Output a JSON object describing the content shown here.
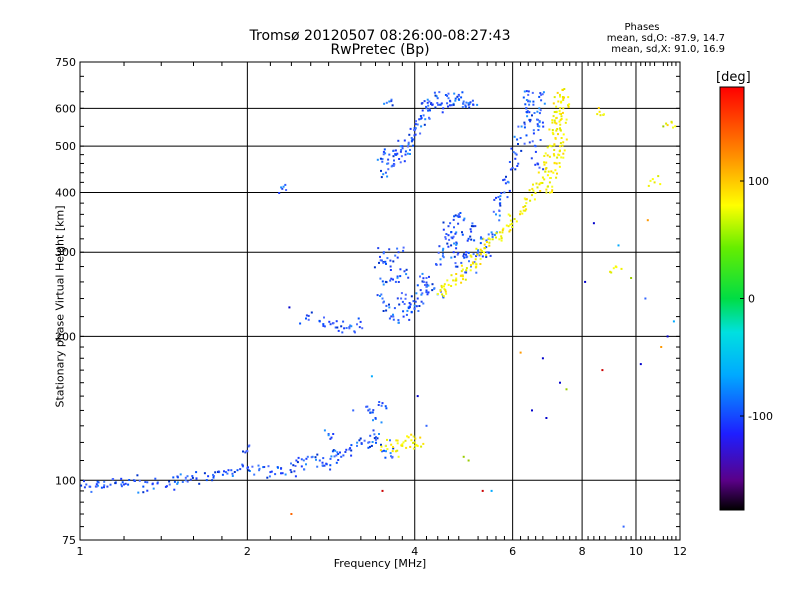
{
  "chart_data": {
    "type": "scatter",
    "title": "Tromsø 20120507 08:26:00-08:27:43",
    "subtitle": "RwPretec (Bp)",
    "xlabel": "Frequency [MHz]",
    "ylabel": "Stationary phase Virtual Height [km]",
    "x_scale": "log",
    "y_scale": "log",
    "xlim": [
      1,
      12
    ],
    "ylim": [
      75,
      750
    ],
    "x_ticks": [
      1,
      2,
      4,
      6,
      8,
      10,
      12
    ],
    "x_tick_labels": [
      "1",
      "2",
      "4",
      "6",
      "8",
      "10",
      "12"
    ],
    "y_ticks": [
      75,
      100,
      200,
      300,
      400,
      500,
      600,
      750
    ],
    "y_tick_labels": [
      "75",
      "100",
      "200",
      "300",
      "400",
      "500",
      "600",
      "750"
    ],
    "grid": true,
    "phases": {
      "heading": "Phases",
      "line_o": "mean, sd,O: -87.9, 14.7",
      "line_x": "mean, sd,X:  91.0, 16.9"
    },
    "colorbar": {
      "label": "[deg]",
      "range": [
        -180,
        180
      ],
      "tick_values": [
        100,
        0,
        -100
      ],
      "tick_labels": [
        "100",
        "0",
        "-100"
      ]
    },
    "series": [
      {
        "phase": "O",
        "points": [
          [
            1.0,
            98
          ],
          [
            1.04,
            97
          ],
          [
            1.08,
            99
          ],
          [
            1.12,
            97
          ],
          [
            1.16,
            99
          ],
          [
            1.2,
            98
          ],
          [
            1.25,
            100
          ],
          [
            1.3,
            97
          ],
          [
            1.38,
            99
          ],
          [
            1.45,
            98
          ],
          [
            1.5,
            99
          ],
          [
            1.55,
            100
          ],
          [
            1.62,
            101
          ],
          [
            1.7,
            102
          ],
          [
            1.78,
            104
          ],
          [
            1.85,
            105
          ],
          [
            1.92,
            105
          ],
          [
            2.0,
            106
          ],
          [
            2.1,
            105
          ],
          [
            2.2,
            104
          ],
          [
            2.3,
            106
          ],
          [
            2.4,
            104
          ],
          [
            2.45,
            110
          ],
          [
            2.55,
            108
          ],
          [
            2.62,
            112
          ],
          [
            2.7,
            110
          ],
          [
            2.78,
            108
          ],
          [
            2.85,
            115
          ],
          [
            2.95,
            112
          ],
          [
            3.05,
            116
          ],
          [
            3.15,
            118
          ],
          [
            3.25,
            121
          ],
          [
            3.35,
            118
          ],
          [
            3.45,
            125
          ],
          [
            3.55,
            118
          ],
          [
            3.62,
            114
          ],
          [
            2.55,
            218
          ],
          [
            2.7,
            215
          ],
          [
            2.85,
            213
          ],
          [
            2.95,
            210
          ],
          [
            3.05,
            209
          ],
          [
            3.15,
            212
          ],
          [
            3.45,
            285
          ],
          [
            3.5,
            240
          ],
          [
            3.52,
            300
          ],
          [
            3.55,
            260
          ],
          [
            3.6,
            230
          ],
          [
            3.62,
            280
          ],
          [
            3.66,
            220
          ],
          [
            3.7,
            260
          ],
          [
            3.74,
            300
          ],
          [
            3.78,
            240
          ],
          [
            3.82,
            220
          ],
          [
            3.86,
            270
          ],
          [
            3.9,
            230
          ],
          [
            3.95,
            225
          ],
          [
            4.0,
            232
          ],
          [
            4.05,
            240
          ],
          [
            4.1,
            250
          ],
          [
            4.15,
            260
          ],
          [
            4.2,
            265
          ],
          [
            4.3,
            250
          ],
          [
            4.4,
            245
          ],
          [
            4.45,
            290
          ],
          [
            4.5,
            305
          ],
          [
            4.55,
            320
          ],
          [
            4.6,
            340
          ],
          [
            4.65,
            310
          ],
          [
            4.7,
            300
          ],
          [
            4.75,
            330
          ],
          [
            4.8,
            360
          ],
          [
            4.85,
            285
          ],
          [
            4.9,
            350
          ],
          [
            4.95,
            300
          ],
          [
            5.0,
            320
          ],
          [
            5.05,
            280
          ],
          [
            5.1,
            340
          ],
          [
            5.2,
            300
          ],
          [
            5.3,
            320
          ],
          [
            5.4,
            300
          ],
          [
            5.5,
            330
          ],
          [
            3.5,
            470
          ],
          [
            3.55,
            440
          ],
          [
            3.6,
            480
          ],
          [
            3.65,
            455
          ],
          [
            3.7,
            490
          ],
          [
            3.75,
            470
          ],
          [
            3.8,
            500
          ],
          [
            3.85,
            480
          ],
          [
            3.9,
            505
          ],
          [
            3.95,
            520
          ],
          [
            4.0,
            540
          ],
          [
            4.05,
            555
          ],
          [
            4.1,
            570
          ],
          [
            4.15,
            580
          ],
          [
            4.2,
            600
          ],
          [
            4.25,
            620
          ],
          [
            4.3,
            610
          ],
          [
            4.4,
            630
          ],
          [
            4.5,
            600
          ],
          [
            4.6,
            630
          ],
          [
            4.7,
            610
          ],
          [
            4.8,
            640
          ],
          [
            4.9,
            620
          ],
          [
            5.0,
            615
          ],
          [
            5.1,
            610
          ],
          [
            5.6,
            360
          ],
          [
            5.7,
            380
          ],
          [
            5.8,
            400
          ],
          [
            5.9,
            420
          ],
          [
            6.0,
            450
          ],
          [
            6.1,
            480
          ],
          [
            6.2,
            520
          ],
          [
            6.3,
            560
          ],
          [
            6.35,
            600
          ],
          [
            6.4,
            640
          ],
          [
            6.45,
            620
          ],
          [
            6.5,
            580
          ],
          [
            6.55,
            540
          ],
          [
            6.6,
            500
          ],
          [
            6.65,
            460
          ],
          [
            6.7,
            600
          ],
          [
            6.75,
            640
          ],
          [
            6.8,
            560
          ],
          [
            2.0,
            115
          ],
          [
            2.8,
            125
          ],
          [
            3.3,
            140
          ],
          [
            3.4,
            135
          ],
          [
            3.5,
            145
          ],
          [
            2.3,
            410
          ],
          [
            3.6,
            620
          ]
        ]
      },
      {
        "phase": "X",
        "points": [
          [
            3.55,
            118
          ],
          [
            3.7,
            115
          ],
          [
            3.8,
            118
          ],
          [
            3.9,
            123
          ],
          [
            4.0,
            120
          ],
          [
            4.05,
            118
          ],
          [
            4.45,
            250
          ],
          [
            4.55,
            248
          ],
          [
            4.65,
            255
          ],
          [
            4.75,
            262
          ],
          [
            4.85,
            268
          ],
          [
            4.95,
            275
          ],
          [
            5.05,
            282
          ],
          [
            5.15,
            290
          ],
          [
            5.25,
            298
          ],
          [
            5.35,
            306
          ],
          [
            5.45,
            314
          ],
          [
            5.6,
            322
          ],
          [
            5.75,
            330
          ],
          [
            5.9,
            340
          ],
          [
            6.05,
            352
          ],
          [
            6.2,
            365
          ],
          [
            6.35,
            380
          ],
          [
            6.5,
            395
          ],
          [
            6.65,
            410
          ],
          [
            6.8,
            430
          ],
          [
            6.9,
            450
          ],
          [
            7.0,
            475
          ],
          [
            7.05,
            500
          ],
          [
            7.1,
            530
          ],
          [
            7.15,
            560
          ],
          [
            7.2,
            590
          ],
          [
            7.25,
            620
          ],
          [
            7.3,
            640
          ],
          [
            6.9,
            400
          ],
          [
            7.0,
            420
          ],
          [
            7.1,
            440
          ],
          [
            7.2,
            460
          ],
          [
            7.25,
            480
          ],
          [
            7.3,
            500
          ],
          [
            7.35,
            520
          ],
          [
            7.3,
            545
          ],
          [
            7.35,
            570
          ],
          [
            7.4,
            600
          ],
          [
            7.4,
            630
          ],
          [
            8.6,
            590
          ],
          [
            11.6,
            560
          ],
          [
            10.8,
            420
          ],
          [
            9.2,
            280
          ]
        ]
      },
      {
        "phase": "other",
        "points": [
          [
            2.38,
            230
          ],
          [
            3.35,
            165
          ],
          [
            4.05,
            150
          ],
          [
            4.9,
            112
          ],
          [
            5.3,
            95
          ],
          [
            6.2,
            185
          ],
          [
            6.9,
            135
          ],
          [
            7.3,
            160
          ],
          [
            8.7,
            170
          ],
          [
            10.2,
            175
          ],
          [
            11.1,
            190
          ],
          [
            11.4,
            200
          ],
          [
            9.5,
            80
          ],
          [
            3.5,
            95
          ],
          [
            5.0,
            110
          ],
          [
            6.5,
            140
          ],
          [
            6.8,
            180
          ],
          [
            7.5,
            155
          ],
          [
            8.1,
            260
          ],
          [
            9.8,
            265
          ],
          [
            10.4,
            240
          ],
          [
            11.7,
            215
          ],
          [
            2.4,
            85
          ],
          [
            3.1,
            140
          ],
          [
            4.2,
            130
          ],
          [
            5.5,
            95
          ],
          [
            10.5,
            350
          ],
          [
            11.2,
            550
          ],
          [
            8.4,
            345
          ],
          [
            9.3,
            310
          ]
        ]
      }
    ]
  }
}
